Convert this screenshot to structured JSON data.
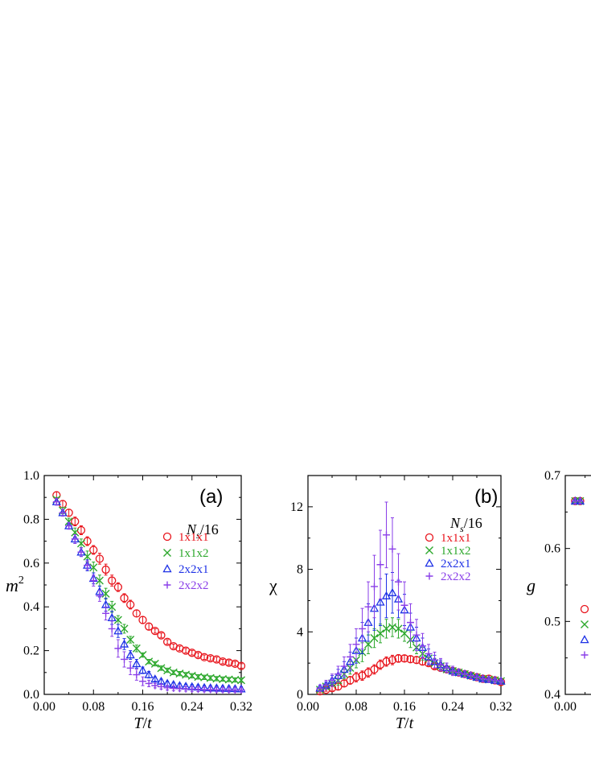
{
  "chart_data": [
    {
      "id": "a",
      "type": "scatter",
      "panel_label": "(a)",
      "xlabel_main": "T",
      "xlabel_sep": "/",
      "xlabel_unit": "t",
      "ylabel_main": "m",
      "ylabel_sup": "2",
      "xlim": [
        0,
        0.32
      ],
      "ylim": [
        0,
        1.0
      ],
      "xticks": [
        "0.00",
        "0.08",
        "0.16",
        "0.24",
        "0.32"
      ],
      "yticks": [
        "0.0",
        "0.2",
        "0.4",
        "0.6",
        "0.8",
        "1.0"
      ],
      "legend_title_main": "N",
      "legend_title_sub": "s",
      "legend_title_rest": "/16",
      "series": [
        {
          "name": "1x1x1",
          "marker": "circle",
          "color": "#e8141c",
          "x": [
            0.02,
            0.03,
            0.04,
            0.05,
            0.06,
            0.07,
            0.08,
            0.09,
            0.1,
            0.11,
            0.12,
            0.13,
            0.14,
            0.15,
            0.16,
            0.17,
            0.18,
            0.19,
            0.2,
            0.21,
            0.22,
            0.23,
            0.24,
            0.25,
            0.26,
            0.27,
            0.28,
            0.29,
            0.3,
            0.31,
            0.32
          ],
          "y": [
            0.91,
            0.87,
            0.83,
            0.79,
            0.75,
            0.7,
            0.66,
            0.62,
            0.57,
            0.52,
            0.49,
            0.44,
            0.41,
            0.37,
            0.34,
            0.31,
            0.29,
            0.27,
            0.24,
            0.22,
            0.21,
            0.2,
            0.19,
            0.18,
            0.17,
            0.165,
            0.16,
            0.15,
            0.145,
            0.14,
            0.13
          ],
          "err": [
            0.015,
            0.015,
            0.015,
            0.02,
            0.02,
            0.02,
            0.02,
            0.025,
            0.025,
            0.025,
            0.02,
            0.02,
            0.02,
            0.015,
            0.015,
            0.015,
            0.01,
            0.01,
            0.01,
            0.01,
            0.01,
            0.01,
            0.01,
            0.01,
            0.01,
            0.01,
            0.01,
            0.01,
            0.01,
            0.01,
            0.01
          ]
        },
        {
          "name": "1x1x2",
          "marker": "cross",
          "color": "#2da82d",
          "x": [
            0.02,
            0.03,
            0.04,
            0.05,
            0.06,
            0.07,
            0.08,
            0.09,
            0.1,
            0.11,
            0.12,
            0.13,
            0.14,
            0.15,
            0.16,
            0.17,
            0.18,
            0.19,
            0.2,
            0.21,
            0.22,
            0.23,
            0.24,
            0.25,
            0.26,
            0.27,
            0.28,
            0.29,
            0.3,
            0.31,
            0.32
          ],
          "y": [
            0.89,
            0.84,
            0.79,
            0.74,
            0.69,
            0.63,
            0.58,
            0.52,
            0.46,
            0.4,
            0.34,
            0.3,
            0.25,
            0.21,
            0.18,
            0.15,
            0.14,
            0.12,
            0.11,
            0.1,
            0.095,
            0.09,
            0.085,
            0.08,
            0.078,
            0.075,
            0.072,
            0.07,
            0.068,
            0.066,
            0.065
          ],
          "err": [
            0.01,
            0.015,
            0.015,
            0.02,
            0.02,
            0.025,
            0.025,
            0.025,
            0.025,
            0.025,
            0.02,
            0.02,
            0.015,
            0.015,
            0.01,
            0.01,
            0.01,
            0.01,
            0.01,
            0.01,
            0.01,
            0.01,
            0.01,
            0.01,
            0.01,
            0.01,
            0.01,
            0.01,
            0.01,
            0.01,
            0.01
          ]
        },
        {
          "name": "2x2x1",
          "marker": "triangle",
          "color": "#1f32e6",
          "x": [
            0.02,
            0.03,
            0.04,
            0.05,
            0.06,
            0.07,
            0.08,
            0.09,
            0.1,
            0.11,
            0.12,
            0.13,
            0.14,
            0.15,
            0.16,
            0.17,
            0.18,
            0.19,
            0.2,
            0.21,
            0.22,
            0.23,
            0.24,
            0.25,
            0.26,
            0.27,
            0.28,
            0.29,
            0.3,
            0.31,
            0.32
          ],
          "y": [
            0.88,
            0.83,
            0.77,
            0.71,
            0.65,
            0.59,
            0.53,
            0.47,
            0.41,
            0.35,
            0.29,
            0.23,
            0.18,
            0.14,
            0.11,
            0.09,
            0.07,
            0.06,
            0.05,
            0.045,
            0.04,
            0.037,
            0.035,
            0.033,
            0.031,
            0.03,
            0.029,
            0.028,
            0.027,
            0.026,
            0.025
          ],
          "err": [
            0.015,
            0.015,
            0.015,
            0.02,
            0.02,
            0.025,
            0.025,
            0.025,
            0.03,
            0.03,
            0.03,
            0.025,
            0.02,
            0.02,
            0.015,
            0.015,
            0.01,
            0.01,
            0.01,
            0.01,
            0.01,
            0.01,
            0.01,
            0.01,
            0.01,
            0.01,
            0.01,
            0.01,
            0.01,
            0.01,
            0.01
          ]
        },
        {
          "name": "2x2x2",
          "marker": "plus",
          "color": "#8a3fe8",
          "x": [
            0.02,
            0.03,
            0.04,
            0.05,
            0.06,
            0.07,
            0.08,
            0.09,
            0.1,
            0.11,
            0.12,
            0.13,
            0.14,
            0.15,
            0.16,
            0.17,
            0.18,
            0.19,
            0.2,
            0.21,
            0.22,
            0.23,
            0.24,
            0.25,
            0.26,
            0.27,
            0.28,
            0.29,
            0.3,
            0.31,
            0.32
          ],
          "y": [
            0.88,
            0.83,
            0.77,
            0.71,
            0.65,
            0.59,
            0.52,
            0.45,
            0.37,
            0.3,
            0.21,
            0.16,
            0.12,
            0.09,
            0.06,
            0.05,
            0.04,
            0.035,
            0.03,
            0.028,
            0.026,
            0.025,
            0.024,
            0.023,
            0.022,
            0.022,
            0.021,
            0.021,
            0.02,
            0.02,
            0.02
          ],
          "err": [
            0.015,
            0.015,
            0.015,
            0.02,
            0.02,
            0.02,
            0.025,
            0.025,
            0.03,
            0.035,
            0.04,
            0.035,
            0.03,
            0.025,
            0.02,
            0.015,
            0.01,
            0.01,
            0.01,
            0.01,
            0.01,
            0.01,
            0.01,
            0.01,
            0.01,
            0.01,
            0.01,
            0.01,
            0.01,
            0.01,
            0.01
          ]
        }
      ]
    },
    {
      "id": "b",
      "type": "scatter",
      "panel_label": "(b)",
      "xlabel_main": "T",
      "xlabel_sep": "/",
      "xlabel_unit": "t",
      "ylabel_main": "χ",
      "ylabel_sup": "",
      "xlim": [
        0,
        0.32
      ],
      "ylim": [
        0,
        14
      ],
      "xticks": [
        "0.00",
        "0.08",
        "0.16",
        "0.24",
        "0.32"
      ],
      "yticks": [
        "0",
        "4",
        "8",
        "12"
      ],
      "legend_title_main": "N",
      "legend_title_sub": "s",
      "legend_title_rest": "/16",
      "series": [
        {
          "name": "1x1x1",
          "marker": "circle",
          "color": "#e8141c",
          "x": [
            0.02,
            0.03,
            0.04,
            0.05,
            0.06,
            0.07,
            0.08,
            0.09,
            0.1,
            0.11,
            0.12,
            0.13,
            0.14,
            0.15,
            0.16,
            0.17,
            0.18,
            0.19,
            0.2,
            0.21,
            0.22,
            0.23,
            0.24,
            0.25,
            0.26,
            0.27,
            0.28,
            0.29,
            0.3,
            0.31,
            0.32
          ],
          "y": [
            0.2,
            0.3,
            0.4,
            0.5,
            0.7,
            0.9,
            1.1,
            1.2,
            1.4,
            1.6,
            1.9,
            2.1,
            2.2,
            2.3,
            2.3,
            2.25,
            2.2,
            2.1,
            2.0,
            1.8,
            1.7,
            1.6,
            1.5,
            1.4,
            1.3,
            1.2,
            1.1,
            1.0,
            1.0,
            0.9,
            0.8
          ],
          "err": [
            0.1,
            0.1,
            0.15,
            0.2,
            0.2,
            0.25,
            0.3,
            0.3,
            0.3,
            0.3,
            0.3,
            0.3,
            0.3,
            0.25,
            0.2,
            0.2,
            0.2,
            0.2,
            0.15,
            0.15,
            0.15,
            0.1,
            0.1,
            0.1,
            0.1,
            0.1,
            0.1,
            0.1,
            0.1,
            0.1,
            0.1
          ]
        },
        {
          "name": "1x1x2",
          "marker": "cross",
          "color": "#2da82d",
          "x": [
            0.02,
            0.03,
            0.04,
            0.05,
            0.06,
            0.07,
            0.08,
            0.09,
            0.1,
            0.11,
            0.12,
            0.13,
            0.14,
            0.15,
            0.16,
            0.17,
            0.18,
            0.19,
            0.2,
            0.21,
            0.22,
            0.23,
            0.24,
            0.25,
            0.26,
            0.27,
            0.28,
            0.29,
            0.3,
            0.31,
            0.32
          ],
          "y": [
            0.3,
            0.5,
            0.7,
            0.9,
            1.3,
            1.7,
            2.2,
            2.7,
            3.2,
            3.6,
            3.9,
            4.2,
            4.3,
            4.2,
            3.9,
            3.5,
            3.0,
            2.6,
            2.3,
            2.0,
            1.8,
            1.6,
            1.5,
            1.4,
            1.3,
            1.2,
            1.1,
            1.0,
            0.95,
            0.9,
            0.85
          ],
          "err": [
            0.1,
            0.15,
            0.2,
            0.3,
            0.3,
            0.4,
            0.5,
            0.6,
            0.6,
            0.6,
            0.6,
            0.6,
            0.6,
            0.6,
            0.5,
            0.5,
            0.4,
            0.4,
            0.3,
            0.3,
            0.3,
            0.2,
            0.2,
            0.2,
            0.15,
            0.15,
            0.15,
            0.1,
            0.1,
            0.1,
            0.1
          ]
        },
        {
          "name": "2x2x1",
          "marker": "triangle",
          "color": "#1f32e6",
          "x": [
            0.02,
            0.03,
            0.04,
            0.05,
            0.06,
            0.07,
            0.08,
            0.09,
            0.1,
            0.11,
            0.12,
            0.13,
            0.14,
            0.15,
            0.16,
            0.17,
            0.18,
            0.19,
            0.2,
            0.21,
            0.22,
            0.23,
            0.24,
            0.25,
            0.26,
            0.27,
            0.28,
            0.29,
            0.3,
            0.31,
            0.32
          ],
          "y": [
            0.4,
            0.6,
            0.9,
            1.2,
            1.6,
            2.1,
            2.8,
            3.6,
            4.6,
            5.5,
            5.9,
            6.3,
            6.5,
            6.1,
            5.4,
            4.3,
            3.6,
            3.0,
            2.4,
            2.1,
            1.9,
            1.7,
            1.5,
            1.4,
            1.3,
            1.2,
            1.1,
            1.0,
            0.95,
            0.9,
            0.85
          ],
          "err": [
            0.2,
            0.2,
            0.3,
            0.4,
            0.5,
            0.6,
            0.8,
            1.0,
            1.2,
            1.4,
            1.5,
            1.4,
            1.3,
            1.2,
            1.0,
            0.9,
            0.7,
            0.6,
            0.5,
            0.4,
            0.3,
            0.3,
            0.2,
            0.2,
            0.2,
            0.15,
            0.15,
            0.1,
            0.1,
            0.1,
            0.1
          ]
        },
        {
          "name": "2x2x2",
          "marker": "plus",
          "color": "#8a3fe8",
          "x": [
            0.02,
            0.03,
            0.04,
            0.05,
            0.06,
            0.07,
            0.08,
            0.09,
            0.1,
            0.11,
            0.12,
            0.13,
            0.14,
            0.15,
            0.16,
            0.17,
            0.18,
            0.19,
            0.2,
            0.21,
            0.22,
            0.23,
            0.24,
            0.25,
            0.26,
            0.27,
            0.28,
            0.29,
            0.3,
            0.31,
            0.32
          ],
          "y": [
            0.4,
            0.6,
            0.9,
            1.3,
            1.8,
            2.4,
            3.2,
            4.2,
            5.6,
            6.9,
            8.3,
            10.2,
            9.3,
            7.2,
            5.7,
            4.6,
            3.8,
            3.1,
            2.6,
            2.2,
            1.9,
            1.7,
            1.5,
            1.4,
            1.3,
            1.2,
            1.1,
            1.0,
            0.95,
            0.9,
            0.85
          ],
          "err": [
            0.2,
            0.3,
            0.4,
            0.5,
            0.6,
            0.8,
            1.0,
            1.3,
            1.6,
            2.0,
            2.2,
            2.1,
            2.0,
            1.8,
            1.5,
            1.2,
            1.0,
            0.8,
            0.6,
            0.5,
            0.4,
            0.3,
            0.3,
            0.2,
            0.2,
            0.2,
            0.15,
            0.15,
            0.1,
            0.1,
            0.1
          ]
        }
      ]
    },
    {
      "id": "c",
      "type": "scatter",
      "panel_label": "",
      "xlabel_main": "",
      "xlabel_sep": "",
      "xlabel_unit": "",
      "ylabel_main": "g",
      "ylabel_sup": "",
      "xlim": [
        0,
        0.32
      ],
      "ylim": [
        0.4,
        0.7
      ],
      "xticks": [
        "0.00"
      ],
      "yticks": [
        "0.4",
        "0.5",
        "0.6",
        "0.7"
      ],
      "series": [
        {
          "name": "",
          "marker": "circle",
          "color": "#e8141c",
          "x": [
            0.02,
            0.03
          ],
          "y": [
            0.665,
            0.665
          ],
          "err": [
            0.003,
            0.003
          ]
        },
        {
          "name": "",
          "marker": "cross",
          "color": "#2da82d",
          "x": [
            0.02,
            0.03
          ],
          "y": [
            0.665,
            0.665
          ],
          "err": [
            0.003,
            0.003
          ]
        },
        {
          "name": "",
          "marker": "triangle",
          "color": "#1f32e6",
          "x": [
            0.02,
            0.03
          ],
          "y": [
            0.665,
            0.665
          ],
          "err": [
            0.003,
            0.003
          ]
        },
        {
          "name": "",
          "marker": "plus",
          "color": "#8a3fe8",
          "x": [
            0.02,
            0.03
          ],
          "y": [
            0.665,
            0.665
          ],
          "err": [
            0.003,
            0.003
          ]
        }
      ],
      "partial_legend_markers": [
        "circle",
        "cross",
        "triangle",
        "plus"
      ]
    }
  ]
}
